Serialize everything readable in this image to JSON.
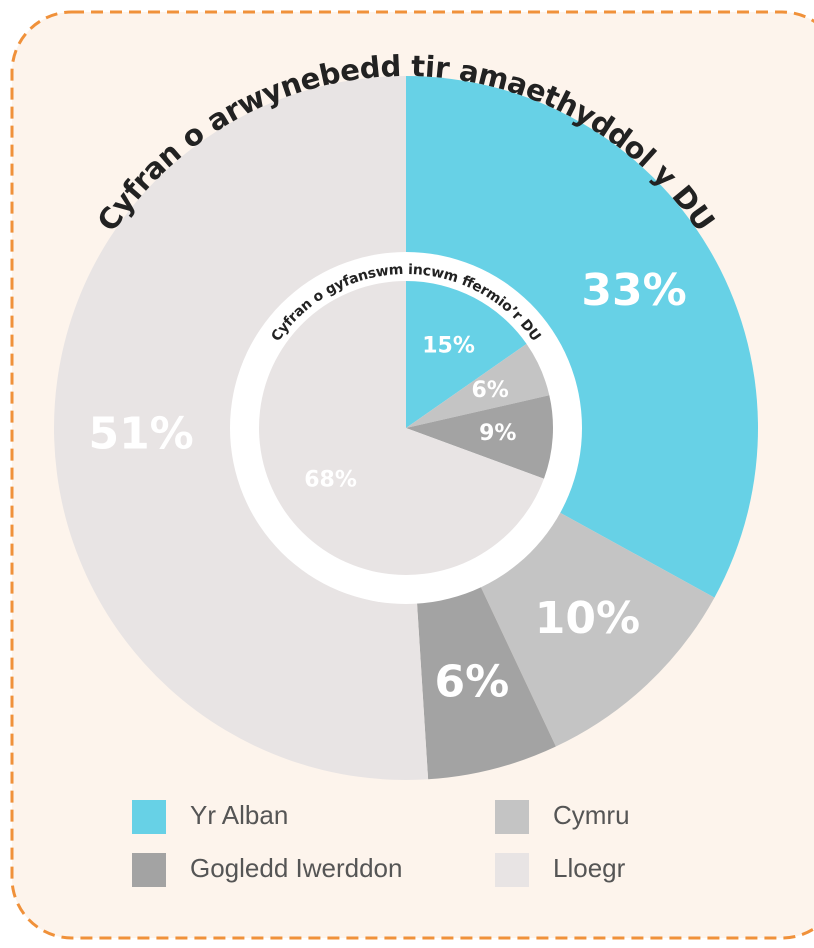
{
  "chart_data": [
    {
      "type": "pie",
      "title": "Cyfran o arwynebedd tir amaethyddol y DU",
      "categories": [
        "Yr Alban",
        "Cymru",
        "Gogledd Iwerddon",
        "Lloegr"
      ],
      "values": [
        33,
        10,
        6,
        51
      ],
      "value_labels": [
        "33%",
        "10%",
        "6%",
        "51%"
      ],
      "colors": [
        "#67d1e6",
        "#c4c4c4",
        "#a3a3a3",
        "#e8e4e4"
      ]
    },
    {
      "type": "pie",
      "title": "Cyfran o gyfanswm incwm ffermio’r DU",
      "categories": [
        "Yr Alban",
        "Cymru",
        "Gogledd Iwerddon",
        "Lloegr"
      ],
      "values": [
        15,
        6,
        9,
        68
      ],
      "value_labels": [
        "15%",
        "6%",
        "9%",
        "68%"
      ],
      "colors": [
        "#67d1e6",
        "#c4c4c4",
        "#a3a3a3",
        "#e8e4e4"
      ]
    }
  ]
}
